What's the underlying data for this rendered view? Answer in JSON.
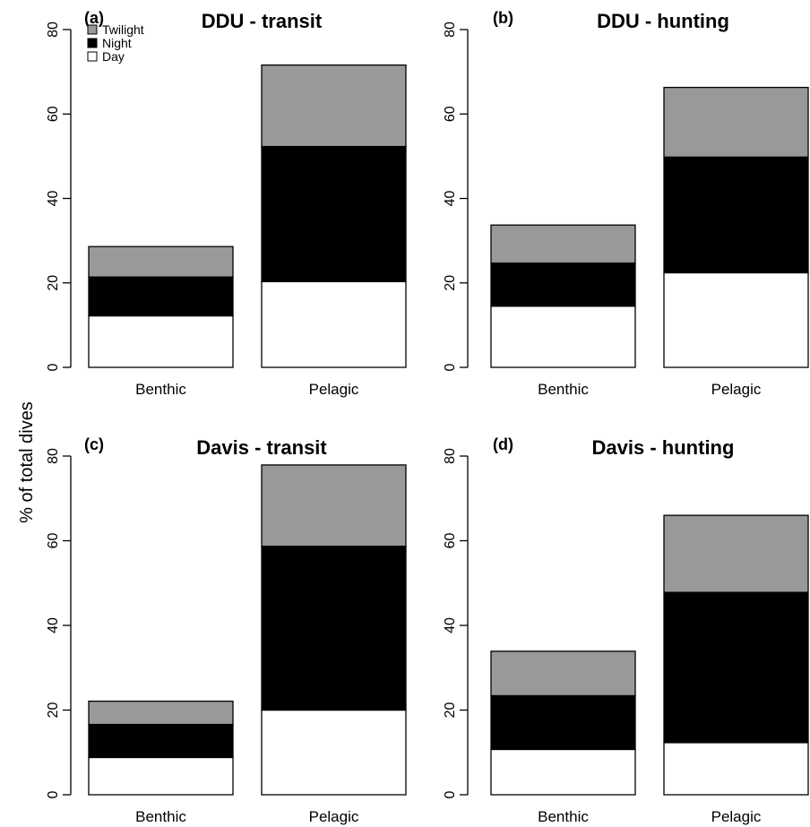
{
  "ylabel": "% of total dives",
  "legend": [
    {
      "label": "Twilight",
      "color": "#999999"
    },
    {
      "label": "Night",
      "color": "#000000"
    },
    {
      "label": "Day",
      "color": "#ffffff"
    }
  ],
  "chart_data": [
    {
      "type": "bar",
      "stacked": true,
      "letter": "(a)",
      "title": "DDU - transit",
      "categories": [
        "Benthic",
        "Pelagic"
      ],
      "series": [
        {
          "name": "Day",
          "color": "#ffffff",
          "values": [
            12.2,
            20.3
          ]
        },
        {
          "name": "Night",
          "color": "#000000",
          "values": [
            9.2,
            32.0
          ]
        },
        {
          "name": "Twilight",
          "color": "#999999",
          "values": [
            7.2,
            19.3
          ]
        }
      ],
      "ylim": [
        0,
        80
      ],
      "yticks": [
        0,
        20,
        40,
        60,
        80
      ],
      "legend_position": "top-left"
    },
    {
      "type": "bar",
      "stacked": true,
      "letter": "(b)",
      "title": "DDU - hunting",
      "categories": [
        "Benthic",
        "Pelagic"
      ],
      "series": [
        {
          "name": "Day",
          "color": "#ffffff",
          "values": [
            14.5,
            22.4
          ]
        },
        {
          "name": "Night",
          "color": "#000000",
          "values": [
            10.2,
            27.4
          ]
        },
        {
          "name": "Twilight",
          "color": "#999999",
          "values": [
            9.0,
            16.5
          ]
        }
      ],
      "ylim": [
        0,
        80
      ],
      "yticks": [
        0,
        20,
        40,
        60,
        80
      ]
    },
    {
      "type": "bar",
      "stacked": true,
      "letter": "(c)",
      "title": "Davis - transit",
      "categories": [
        "Benthic",
        "Pelagic"
      ],
      "series": [
        {
          "name": "Day",
          "color": "#ffffff",
          "values": [
            8.8,
            20.0
          ]
        },
        {
          "name": "Night",
          "color": "#000000",
          "values": [
            7.8,
            38.7
          ]
        },
        {
          "name": "Twilight",
          "color": "#999999",
          "values": [
            5.5,
            19.2
          ]
        }
      ],
      "ylim": [
        0,
        80
      ],
      "yticks": [
        0,
        20,
        40,
        60,
        80
      ]
    },
    {
      "type": "bar",
      "stacked": true,
      "letter": "(d)",
      "title": "Davis - hunting",
      "categories": [
        "Benthic",
        "Pelagic"
      ],
      "series": [
        {
          "name": "Day",
          "color": "#ffffff",
          "values": [
            10.7,
            12.3
          ]
        },
        {
          "name": "Night",
          "color": "#000000",
          "values": [
            12.7,
            35.5
          ]
        },
        {
          "name": "Twilight",
          "color": "#999999",
          "values": [
            10.5,
            18.2
          ]
        }
      ],
      "ylim": [
        0,
        80
      ],
      "yticks": [
        0,
        20,
        40,
        60,
        80
      ]
    }
  ]
}
